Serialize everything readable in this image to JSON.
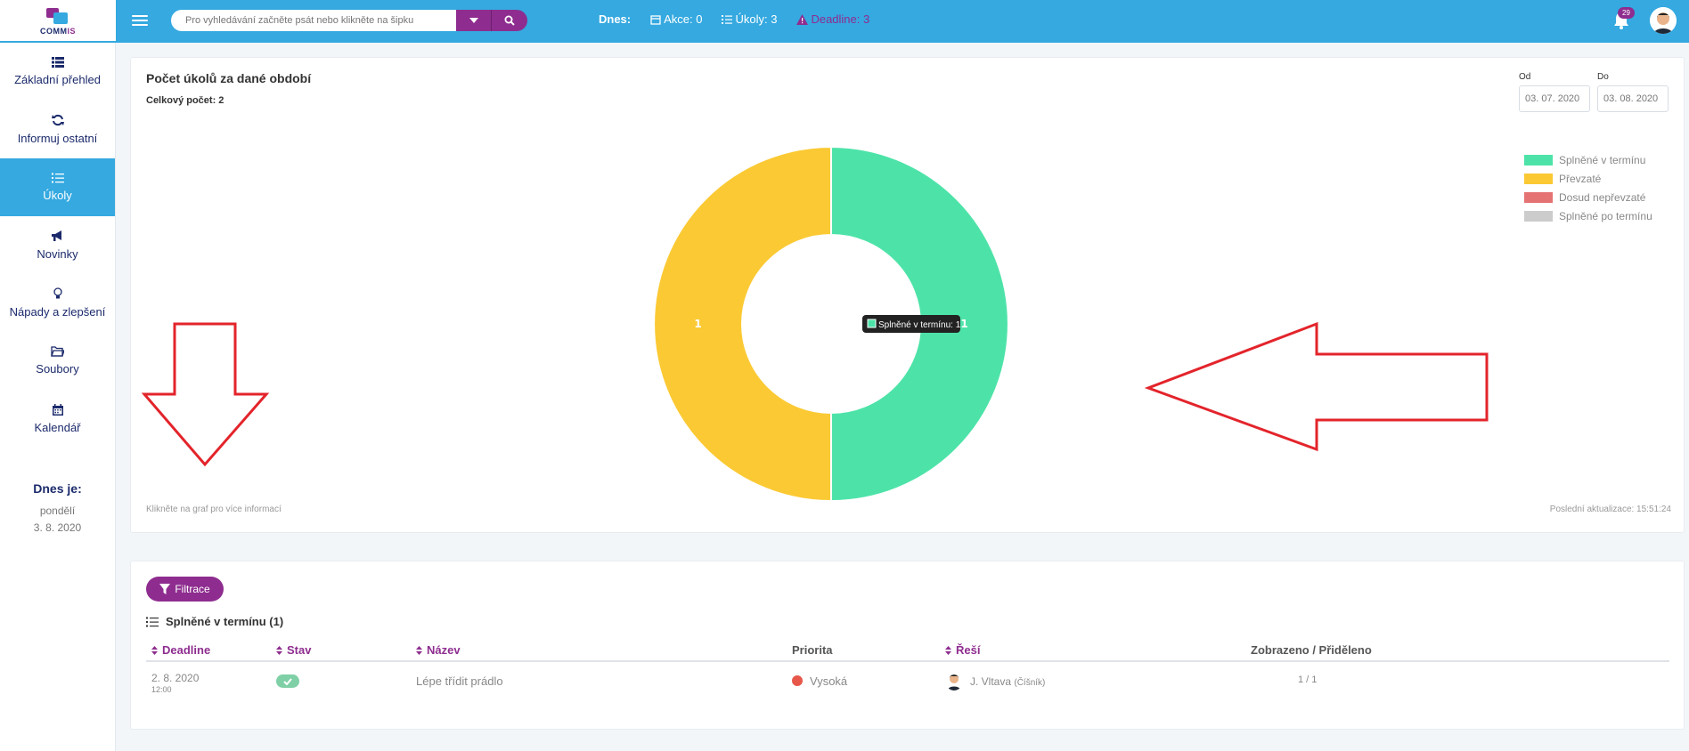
{
  "app": {
    "logo_text_a": "COMM",
    "logo_text_b": "IS"
  },
  "header": {
    "search_placeholder": "Pro vyhledávání začněte psát nebo klikněte na šipku",
    "today_label": "Dnes:",
    "actions": "Akce: 0",
    "tasks": "Úkoly: 3",
    "deadline": "Deadline: 3",
    "notification_count": "29"
  },
  "sidebar": {
    "items": [
      {
        "label": "Základní přehled",
        "icon": "list-icon"
      },
      {
        "label": "Informuj ostatní",
        "icon": "sync-icon"
      },
      {
        "label": "Úkoly",
        "icon": "tasks-icon",
        "active": true
      },
      {
        "label": "Novinky",
        "icon": "megaphone-icon"
      },
      {
        "label": "Nápady a zlepšení",
        "icon": "lightbulb-icon"
      },
      {
        "label": "Soubory",
        "icon": "folder-icon"
      },
      {
        "label": "Kalendář",
        "icon": "calendar-icon"
      }
    ],
    "today_heading": "Dnes je:",
    "today_day": "pondělí",
    "today_date": "3. 8. 2020"
  },
  "chart_card": {
    "title": "Počet úkolů za dané období",
    "total": "Celkový počet: 2",
    "from_label": "Od",
    "from_value": "03. 07. 2020",
    "to_label": "Do",
    "to_value": "03. 08. 2020",
    "hint": "Klikněte na graf pro více informací",
    "updated": "Poslední aktualizace: 15:51:24",
    "tooltip": "Splněné v termínu: 1"
  },
  "chart_data": {
    "type": "pie",
    "categories": [
      "Splněné v termínu",
      "Převzaté",
      "Dosud nepřevzaté",
      "Splněné po termínu"
    ],
    "values": [
      1,
      1,
      0,
      0
    ],
    "colors": [
      "#4de3a8",
      "#fbc933",
      "#e57373",
      "#cccccc"
    ],
    "donut": true,
    "legend": "top-right"
  },
  "table_card": {
    "filter_label": "Filtrace",
    "section_title": "Splněné v termínu (1)",
    "columns": [
      "Deadline",
      "Stav",
      "Název",
      "Priorita",
      "Řeší",
      "Zobrazeno / Přiděleno"
    ],
    "rows": [
      {
        "deadline_date": "2. 8. 2020",
        "deadline_time": "12:00",
        "name": "Lépe třídit prádlo",
        "priority": "Vysoká",
        "priority_color": "#e7574a",
        "solver": "J. Vltava",
        "solver_role": "(Číšník)",
        "shown": "1 / 1"
      }
    ]
  },
  "colors": {
    "accent": "#35a9e0",
    "brand_purple": "#8e2d8f"
  }
}
